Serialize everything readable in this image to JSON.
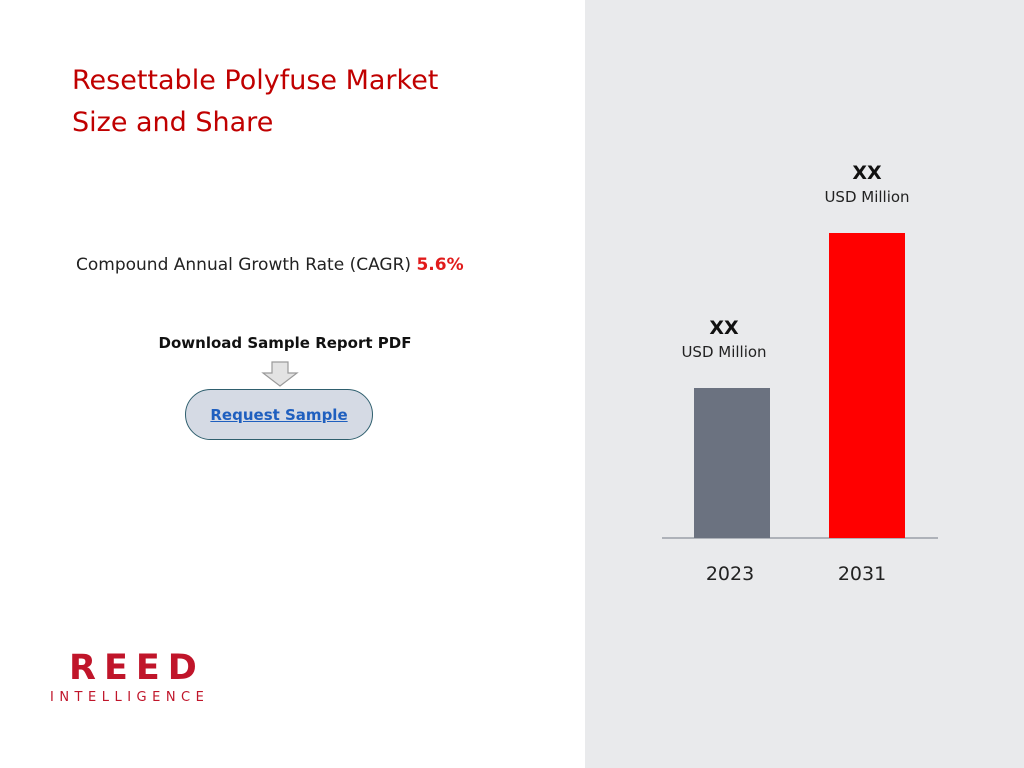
{
  "header": {
    "title_line1": "Resettable Polyfuse Market",
    "title_line2": "Size and Share"
  },
  "cagr": {
    "label": "Compound Annual Growth Rate (CAGR)",
    "value": "5.6%"
  },
  "download": {
    "label": "Download Sample Report PDF",
    "button_label": "Request Sample"
  },
  "logo": {
    "main": "REED",
    "sub": "INTELLIGENCE"
  },
  "colors": {
    "title": "#c00000",
    "cagr_value": "#e11b1b",
    "panel_background": "#e9eaec",
    "bar_2023": "#6b7280",
    "bar_2031": "#ff0000",
    "button_fill": "#d5dae4",
    "button_link": "#1f5fbf",
    "logo": "#c0152a"
  },
  "icons": {
    "arrow": "arrow-down-icon"
  },
  "chart_data": {
    "type": "bar",
    "categories": [
      "2023",
      "2031"
    ],
    "values": [
      150,
      305
    ],
    "value_labels": [
      "XX",
      "XX"
    ],
    "unit_labels": [
      "USD Million",
      "USD Million"
    ],
    "ylim": [
      0,
      320
    ],
    "grid": false,
    "legend": "none",
    "title": "",
    "xlabel": "",
    "ylabel": ""
  }
}
